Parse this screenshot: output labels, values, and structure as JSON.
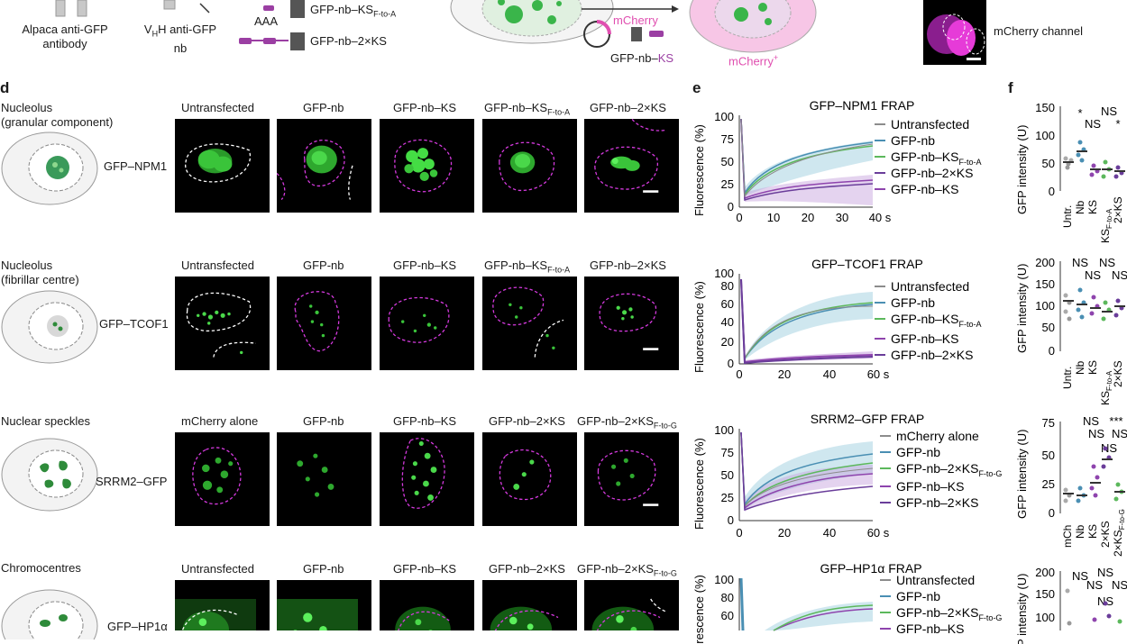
{
  "top": {
    "antibody_label": [
      "Alpaca anti-GFP",
      "antibody"
    ],
    "vhh_label": [
      "VHH anti-GFP",
      "nb"
    ],
    "aaa": "AAA",
    "construct1": "GFP-nb–KSF-to-A",
    "construct2": "GFP-nb–2×KS",
    "mcherry": "mCherry",
    "plasmid_label": "GFP-nb–KS",
    "mcherry_plus": "mCherry+",
    "channel_label": "mCherry channel"
  },
  "panel_letters": {
    "d": "d",
    "e": "e",
    "f": "f"
  },
  "rows": [
    {
      "title": [
        "Nucleolus",
        "(granular component)"
      ],
      "protein": "GFP–NPM1",
      "columns": [
        "Untransfected",
        "GFP-nb",
        "GFP-nb–KS",
        "GFP-nb–KSF-to-A",
        "GFP-nb–2×KS"
      ],
      "frap": {
        "title": "GFP–NPM1 FRAP",
        "ylabel": "Fluorescence (%)",
        "yticks": [
          "100",
          "75",
          "50",
          "25",
          "0"
        ],
        "xticks": [
          "0",
          "10",
          "20",
          "30",
          "40 s"
        ],
        "legend": [
          "Untransfected",
          "GFP-nb",
          "GFP-nb–KSF-to-A",
          "GFP-nb–2×KS",
          "GFP-nb–KS"
        ]
      },
      "scatter": {
        "ylabel": "GFP intensity (U)",
        "yticks": [
          "150",
          "100",
          "50",
          "0"
        ],
        "categories": [
          "Untr.",
          "Nb",
          "KS",
          "KSF-to-A",
          "2×KS"
        ],
        "sig": [
          "*",
          "NS",
          "NS",
          "*"
        ]
      }
    },
    {
      "title": [
        "Nucleolus",
        "(fibrillar centre)"
      ],
      "protein": "GFP–TCOF1",
      "columns": [
        "Untransfected",
        "GFP-nb",
        "GFP-nb–KS",
        "GFP-nb–KSF-to-A",
        "GFP-nb–2×KS"
      ],
      "frap": {
        "title": "GFP–TCOF1 FRAP",
        "ylabel": "Fluorescence (%)",
        "yticks": [
          "100",
          "80",
          "60",
          "40",
          "20",
          "0"
        ],
        "xticks": [
          "0",
          "20",
          "40",
          "60 s"
        ],
        "legend": [
          "Untransfected",
          "GFP-nb",
          "GFP-nb–KSF-to-A",
          "GFP-nb–KS",
          "GFP-nb–2×KS"
        ]
      },
      "scatter": {
        "ylabel": "GFP intensity (U)",
        "yticks": [
          "200",
          "150",
          "100",
          "50",
          "0"
        ],
        "categories": [
          "Untr.",
          "Nb",
          "KS",
          "KSF-to-A",
          "2×KS"
        ],
        "sig": [
          "NS",
          "NS",
          "NS",
          "NS"
        ]
      }
    },
    {
      "title": [
        "Nuclear speckles"
      ],
      "protein": "SRRM2–GFP",
      "columns": [
        "mCherry alone",
        "GFP-nb",
        "GFP-nb–KS",
        "GFP-nb–2×KS",
        "GFP-nb–2×KSF-to-G"
      ],
      "frap": {
        "title": "SRRM2–GFP FRAP",
        "ylabel": "Fluorescence (%)",
        "yticks": [
          "100",
          "75",
          "50",
          "25",
          "0"
        ],
        "xticks": [
          "0",
          "20",
          "40",
          "60 s"
        ],
        "legend": [
          "mCherry alone",
          "GFP-nb",
          "GFP-nb–2×KSF-to-G",
          "GFP-nb–KS",
          "GFP-nb–2×KS"
        ]
      },
      "scatter": {
        "ylabel": "GFP intensity (U)",
        "yticks": [
          "75",
          "50",
          "25",
          "0"
        ],
        "categories": [
          "mCh",
          "Nb",
          "KS",
          "2×KS",
          "2×KSF-to-G"
        ],
        "sig": [
          "NS",
          "***",
          "NS",
          "NS",
          "NS"
        ]
      }
    },
    {
      "title": [
        "Chromocentres"
      ],
      "protein": "GFP–HP1α",
      "columns": [
        "Untransfected",
        "GFP-nb",
        "GFP-nb–KS",
        "GFP-nb–2×KS",
        "GFP-nb–2×KSF-to-G"
      ],
      "frap": {
        "title": "GFP–HP1α FRAP",
        "ylabel": "Fluorescence (%)",
        "yticks": [
          "100",
          "80",
          "60"
        ],
        "legend": [
          "Untransfected",
          "GFP-nb",
          "GFP-nb–2×KSF-to-G",
          "GFP-nb–KS"
        ]
      },
      "scatter": {
        "ylabel": "GFP intensity (U)",
        "yticks": [
          "200",
          "150",
          "100"
        ],
        "sig": [
          "NS",
          "NS",
          "NS",
          "NS",
          "NS"
        ]
      }
    }
  ],
  "colors": {
    "untransfected": "#8c8c8c",
    "gfp_nb": "#4a8fb3",
    "ks_mut": "#5cb85c",
    "ks": "#8e44ad",
    "two_ks": "#6a3d9a",
    "micro_green": "#2ecc40",
    "outline_magenta": "#d63adf",
    "mcherry_pink": "#e04fb0"
  }
}
